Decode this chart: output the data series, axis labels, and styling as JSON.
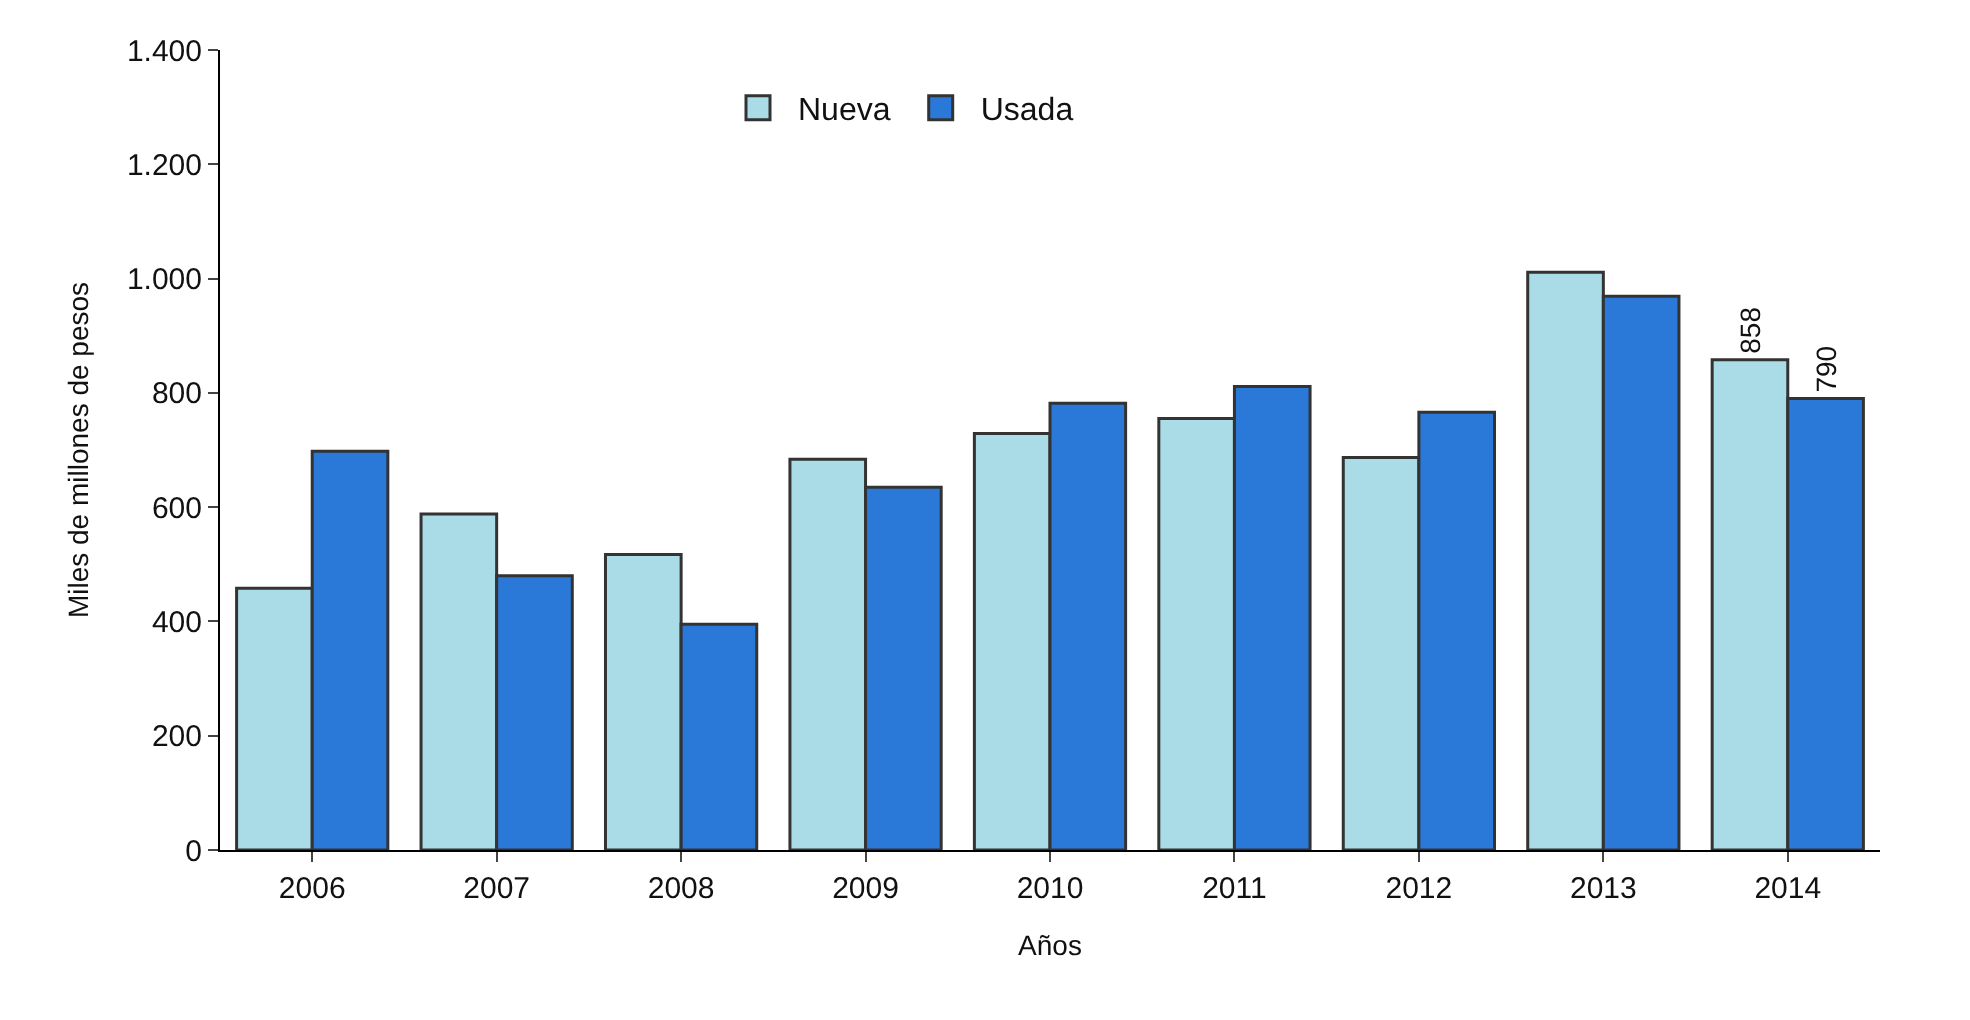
{
  "chart_data": {
    "type": "bar",
    "xlabel": "Años",
    "ylabel": "Miles de millones de pesos",
    "categories": [
      "2006",
      "2007",
      "2008",
      "2009",
      "2010",
      "2011",
      "2012",
      "2013",
      "2014"
    ],
    "series": [
      {
        "name": "Nueva",
        "color": "#a9dce6",
        "values": [
          458,
          588,
          517,
          684,
          729,
          755,
          687,
          1011,
          858
        ],
        "value_labels": [
          null,
          null,
          null,
          null,
          null,
          null,
          null,
          null,
          "858"
        ]
      },
      {
        "name": "Usada",
        "color": "#2a78d8",
        "values": [
          698,
          480,
          395,
          635,
          782,
          811,
          766,
          969,
          790
        ],
        "value_labels": [
          null,
          null,
          null,
          null,
          null,
          null,
          null,
          null,
          "790"
        ]
      }
    ],
    "ylim": [
      0,
      1400
    ],
    "yticks": [
      {
        "value": 0,
        "label": "0"
      },
      {
        "value": 200,
        "label": "200"
      },
      {
        "value": 400,
        "label": "400"
      },
      {
        "value": 600,
        "label": "600"
      },
      {
        "value": 800,
        "label": "800"
      },
      {
        "value": 1000,
        "label": "1.000"
      },
      {
        "value": 1200,
        "label": "1.200"
      },
      {
        "value": 1400,
        "label": "1.400"
      }
    ],
    "legend": "top"
  }
}
